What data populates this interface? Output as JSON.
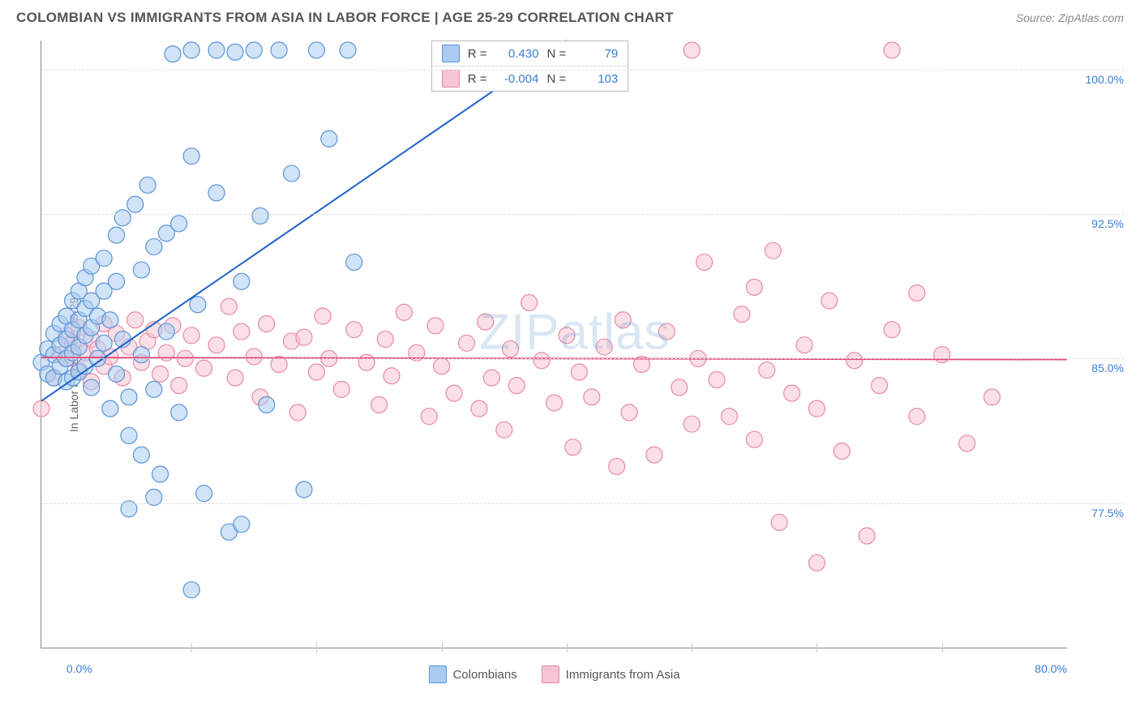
{
  "header": {
    "title": "COLOMBIAN VS IMMIGRANTS FROM ASIA IN LABOR FORCE | AGE 25-29 CORRELATION CHART",
    "source": "Source: ZipAtlas.com"
  },
  "axes": {
    "y_label": "In Labor Force | Age 25-29",
    "y_ticks": [
      {
        "value": 100.0,
        "label": "100.0%"
      },
      {
        "value": 92.5,
        "label": "92.5%"
      },
      {
        "value": 85.0,
        "label": "85.0%"
      },
      {
        "value": 77.5,
        "label": "77.5%"
      }
    ],
    "y_min": 70.0,
    "y_max": 101.5,
    "x_ticks": [
      {
        "value": 0.0,
        "label": "0.0%",
        "align": "left"
      },
      {
        "value": 80.0,
        "label": "80.0%",
        "align": "right"
      }
    ],
    "x_vticks": [
      10,
      20,
      30,
      40,
      50,
      60,
      70
    ],
    "x_min": -2.0,
    "x_max": 80.0
  },
  "watermark": "ZIPatlas",
  "legend": {
    "series_a": "Colombians",
    "series_b": "Immigrants from Asia"
  },
  "stats": {
    "a": {
      "r_label": "R =",
      "r": "0.430",
      "n_label": "N =",
      "n": "79"
    },
    "b": {
      "r_label": "R =",
      "r": "-0.004",
      "n_label": "N =",
      "n": "103"
    }
  },
  "style": {
    "series_a_fill": "#aaccf0",
    "series_a_stroke": "#5b93d6",
    "series_a_line": "#1e62c9",
    "series_b_fill": "#f6c4d2",
    "series_b_stroke": "#e889a6",
    "series_b_line": "#e44a7a",
    "marker_radius": 10,
    "marker_opacity": 0.55,
    "line_width": 2,
    "grid_color": "#dddddd",
    "tick_color": "#3b7dd8",
    "background": "#ffffff"
  },
  "series_a_line": {
    "x1": -2,
    "y1": 82.8,
    "x2": 40,
    "y2": 101.5
  },
  "series_b_line": {
    "x1": -2,
    "y1": 85.05,
    "x2": 80,
    "y2": 84.95
  },
  "series_a_points": [
    [
      -2,
      84.8
    ],
    [
      -1.5,
      85.5
    ],
    [
      -1.5,
      84.2
    ],
    [
      -1,
      86.3
    ],
    [
      -1,
      85.2
    ],
    [
      -1,
      84.0
    ],
    [
      -0.5,
      86.8
    ],
    [
      -0.5,
      85.7
    ],
    [
      -0.5,
      84.6
    ],
    [
      0,
      87.2
    ],
    [
      0,
      86.0
    ],
    [
      0,
      85.0
    ],
    [
      0,
      83.8
    ],
    [
      0.5,
      88.0
    ],
    [
      0.5,
      86.5
    ],
    [
      0.5,
      85.3
    ],
    [
      0.5,
      84.0
    ],
    [
      1,
      88.5
    ],
    [
      1,
      87.0
    ],
    [
      1,
      85.6
    ],
    [
      1,
      84.3
    ],
    [
      1.5,
      89.2
    ],
    [
      1.5,
      87.6
    ],
    [
      1.5,
      86.2
    ],
    [
      1.5,
      84.6
    ],
    [
      2,
      89.8
    ],
    [
      2,
      88.0
    ],
    [
      2,
      86.6
    ],
    [
      2,
      83.5
    ],
    [
      2.5,
      87.2
    ],
    [
      2.5,
      85.0
    ],
    [
      3,
      90.2
    ],
    [
      3,
      88.5
    ],
    [
      3,
      85.8
    ],
    [
      3.5,
      87.0
    ],
    [
      3.5,
      82.4
    ],
    [
      4,
      91.4
    ],
    [
      4,
      89.0
    ],
    [
      4,
      84.2
    ],
    [
      4.5,
      92.3
    ],
    [
      4.5,
      86.0
    ],
    [
      5,
      83.0
    ],
    [
      5,
      81.0
    ],
    [
      5.5,
      93.0
    ],
    [
      6,
      89.6
    ],
    [
      6,
      85.2
    ],
    [
      6,
      80.0
    ],
    [
      6.5,
      94.0
    ],
    [
      7,
      90.8
    ],
    [
      7,
      83.4
    ],
    [
      7.5,
      79.0
    ],
    [
      8,
      91.5
    ],
    [
      8,
      86.4
    ],
    [
      8.5,
      100.8
    ],
    [
      9,
      92.0
    ],
    [
      9,
      82.2
    ],
    [
      10,
      101.0
    ],
    [
      10,
      95.5
    ],
    [
      10.5,
      87.8
    ],
    [
      11,
      78.0
    ],
    [
      12,
      101.0
    ],
    [
      12,
      93.6
    ],
    [
      13,
      76.0
    ],
    [
      13.5,
      100.9
    ],
    [
      14,
      89.0
    ],
    [
      14,
      76.4
    ],
    [
      15,
      101.0
    ],
    [
      15.5,
      92.4
    ],
    [
      16,
      82.6
    ],
    [
      17,
      101.0
    ],
    [
      18,
      94.6
    ],
    [
      19,
      78.2
    ],
    [
      20,
      101.0
    ],
    [
      21,
      96.4
    ],
    [
      22.5,
      101.0
    ],
    [
      23,
      90.0
    ],
    [
      10,
      73.0
    ],
    [
      5,
      77.2
    ],
    [
      7,
      77.8
    ]
  ],
  "series_b_points": [
    [
      -2,
      82.4
    ],
    [
      -1,
      84.0
    ],
    [
      -0.5,
      85.2
    ],
    [
      0,
      86.2
    ],
    [
      0,
      85.0
    ],
    [
      0.5,
      85.8
    ],
    [
      1,
      84.4
    ],
    [
      1,
      86.6
    ],
    [
      1.5,
      85.3
    ],
    [
      2,
      86.0
    ],
    [
      2,
      83.8
    ],
    [
      2.5,
      85.5
    ],
    [
      3,
      84.6
    ],
    [
      3,
      86.8
    ],
    [
      3.5,
      85.1
    ],
    [
      4,
      86.3
    ],
    [
      4.5,
      84.0
    ],
    [
      5,
      85.6
    ],
    [
      5.5,
      87.0
    ],
    [
      6,
      84.8
    ],
    [
      6.5,
      85.9
    ],
    [
      7,
      86.5
    ],
    [
      7.5,
      84.2
    ],
    [
      8,
      85.3
    ],
    [
      8.5,
      86.7
    ],
    [
      9,
      83.6
    ],
    [
      9.5,
      85.0
    ],
    [
      10,
      86.2
    ],
    [
      11,
      84.5
    ],
    [
      12,
      85.7
    ],
    [
      13,
      87.7
    ],
    [
      13.5,
      84.0
    ],
    [
      14,
      86.4
    ],
    [
      15,
      85.1
    ],
    [
      15.5,
      83.0
    ],
    [
      16,
      86.8
    ],
    [
      17,
      84.7
    ],
    [
      18,
      85.9
    ],
    [
      18.5,
      82.2
    ],
    [
      19,
      86.1
    ],
    [
      20,
      84.3
    ],
    [
      20.5,
      87.2
    ],
    [
      21,
      85.0
    ],
    [
      22,
      83.4
    ],
    [
      23,
      86.5
    ],
    [
      24,
      84.8
    ],
    [
      25,
      82.6
    ],
    [
      25.5,
      86.0
    ],
    [
      26,
      84.1
    ],
    [
      27,
      87.4
    ],
    [
      28,
      85.3
    ],
    [
      29,
      82.0
    ],
    [
      29.5,
      86.7
    ],
    [
      30,
      84.6
    ],
    [
      31,
      83.2
    ],
    [
      32,
      85.8
    ],
    [
      33,
      82.4
    ],
    [
      33.5,
      86.9
    ],
    [
      34,
      84.0
    ],
    [
      35,
      81.3
    ],
    [
      35.5,
      85.5
    ],
    [
      36,
      83.6
    ],
    [
      37,
      87.9
    ],
    [
      38,
      84.9
    ],
    [
      39,
      82.7
    ],
    [
      40,
      86.2
    ],
    [
      40.5,
      80.4
    ],
    [
      41,
      84.3
    ],
    [
      42,
      83.0
    ],
    [
      43,
      85.6
    ],
    [
      44,
      79.4
    ],
    [
      44.5,
      87.0
    ],
    [
      45,
      82.2
    ],
    [
      46,
      84.7
    ],
    [
      47,
      80.0
    ],
    [
      48,
      86.4
    ],
    [
      49,
      83.5
    ],
    [
      50,
      81.6
    ],
    [
      50.5,
      85.0
    ],
    [
      51,
      90.0
    ],
    [
      52,
      83.9
    ],
    [
      53,
      82.0
    ],
    [
      54,
      87.3
    ],
    [
      55,
      80.8
    ],
    [
      56,
      84.4
    ],
    [
      56.5,
      90.6
    ],
    [
      57,
      76.5
    ],
    [
      58,
      83.2
    ],
    [
      59,
      85.7
    ],
    [
      60,
      82.4
    ],
    [
      61,
      88.0
    ],
    [
      62,
      80.2
    ],
    [
      63,
      84.9
    ],
    [
      64,
      75.8
    ],
    [
      65,
      83.6
    ],
    [
      66,
      86.5
    ],
    [
      68,
      82.0
    ],
    [
      70,
      85.2
    ],
    [
      72,
      80.6
    ],
    [
      74,
      83.0
    ],
    [
      50,
      101.0
    ],
    [
      55,
      88.7
    ],
    [
      60,
      74.4
    ],
    [
      66,
      101.0
    ],
    [
      68,
      88.4
    ]
  ]
}
